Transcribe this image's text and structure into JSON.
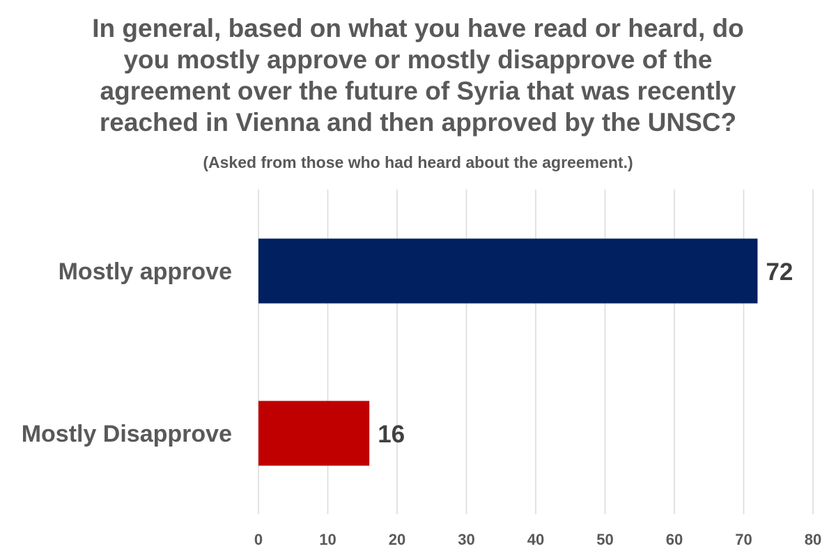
{
  "chart_data": {
    "type": "bar",
    "orientation": "horizontal",
    "title_lines": [
      "In general, based on what you have read or heard, do",
      "you mostly approve or mostly disapprove of the",
      "agreement over the future of Syria that was recently",
      "reached in Vienna and then approved by the UNSC?"
    ],
    "subtitle": "(Asked from those who had heard about the agreement.)",
    "categories": [
      "Mostly approve",
      "Mostly Disapprove"
    ],
    "values": [
      72,
      16
    ],
    "data_labels": [
      "72",
      "16"
    ],
    "colors": [
      "#002060",
      "#c00000"
    ],
    "xlim": [
      0,
      80
    ],
    "xticks": [
      0,
      10,
      20,
      30,
      40,
      50,
      60,
      70,
      80
    ],
    "xtick_labels": [
      "0",
      "10",
      "20",
      "30",
      "40",
      "50",
      "60",
      "70",
      "80"
    ],
    "grid": "vertical",
    "legend": "none",
    "xlabel": "",
    "ylabel": ""
  }
}
